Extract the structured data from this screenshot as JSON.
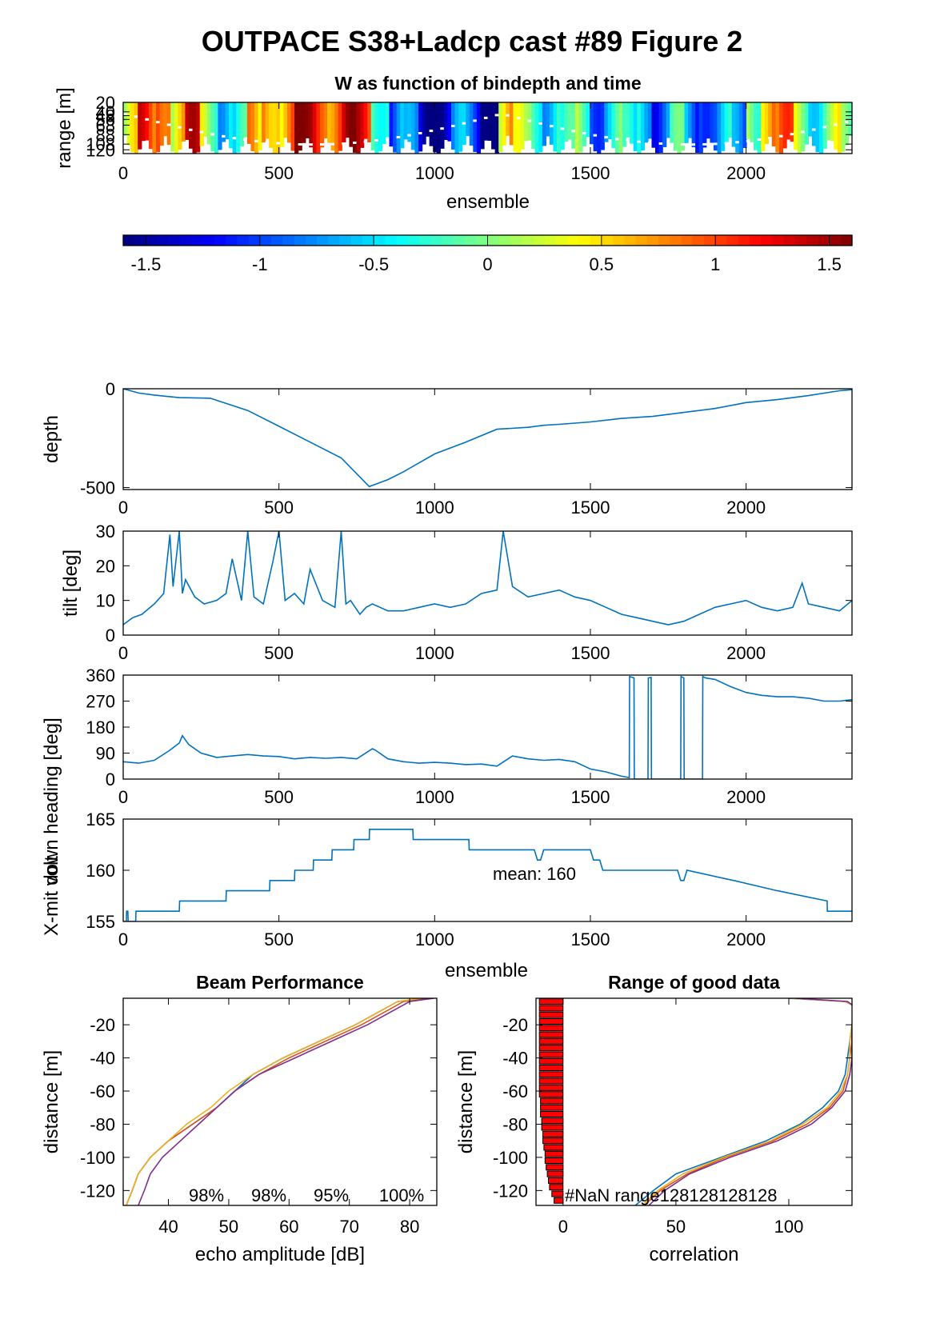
{
  "figure": {
    "title": "OUTPACE S38+Ladcp cast #89 Figure 2"
  },
  "chart_data": [
    {
      "id": "w_image",
      "type": "heatmap",
      "title": "W as function of bindepth and time",
      "xlabel": "ensemble",
      "ylabel": "range [m]",
      "xlim": [
        0,
        2340
      ],
      "ylim": [
        20,
        128
      ],
      "xticks": [
        "0",
        "500",
        "1000",
        "1500",
        "2000"
      ],
      "yticks": [
        "20",
        "40",
        "48",
        "56",
        "68",
        "88",
        "108",
        "120"
      ],
      "note": "sampled column-average W",
      "columns": [
        {
          "x": 0,
          "w": 0.1
        },
        {
          "x": 50,
          "w": 0.9
        },
        {
          "x": 100,
          "w": 1.3
        },
        {
          "x": 150,
          "w": 0.5
        },
        {
          "x": 200,
          "w": 1.0
        },
        {
          "x": 250,
          "w": 0.2
        },
        {
          "x": 300,
          "w": -0.3
        },
        {
          "x": 350,
          "w": -0.6
        },
        {
          "x": 400,
          "w": 0.4
        },
        {
          "x": 450,
          "w": 1.0
        },
        {
          "x": 500,
          "w": 0.7
        },
        {
          "x": 550,
          "w": 1.2
        },
        {
          "x": 600,
          "w": 1.3
        },
        {
          "x": 650,
          "w": 1.1
        },
        {
          "x": 700,
          "w": 1.2
        },
        {
          "x": 750,
          "w": 1.0
        },
        {
          "x": 800,
          "w": 0.1
        },
        {
          "x": 850,
          "w": -0.9
        },
        {
          "x": 900,
          "w": -1.1
        },
        {
          "x": 950,
          "w": -1.4
        },
        {
          "x": 1000,
          "w": -1.2
        },
        {
          "x": 1050,
          "w": -1.0
        },
        {
          "x": 1100,
          "w": -1.1
        },
        {
          "x": 1150,
          "w": -1.3
        },
        {
          "x": 1200,
          "w": 0.4
        },
        {
          "x": 1250,
          "w": -0.1
        },
        {
          "x": 1300,
          "w": 0.0
        },
        {
          "x": 1350,
          "w": -0.3
        },
        {
          "x": 1400,
          "w": -0.6
        },
        {
          "x": 1450,
          "w": -0.2
        },
        {
          "x": 1500,
          "w": -0.6
        },
        {
          "x": 1550,
          "w": -0.4
        },
        {
          "x": 1600,
          "w": -0.7
        },
        {
          "x": 1650,
          "w": -0.3
        },
        {
          "x": 1700,
          "w": -0.8
        },
        {
          "x": 1750,
          "w": -0.5
        },
        {
          "x": 1800,
          "w": -0.9
        },
        {
          "x": 1850,
          "w": -0.6
        },
        {
          "x": 1900,
          "w": -0.7
        },
        {
          "x": 1950,
          "w": -1.1
        },
        {
          "x": 2000,
          "w": 0.2
        },
        {
          "x": 2050,
          "w": 0.9
        },
        {
          "x": 2100,
          "w": 0.6
        },
        {
          "x": 2150,
          "w": 0.1
        },
        {
          "x": 2200,
          "w": -0.1
        },
        {
          "x": 2250,
          "w": 0.0
        },
        {
          "x": 2300,
          "w": -0.4
        }
      ]
    },
    {
      "id": "colorbar",
      "type": "colorbar",
      "range": [
        -1.6,
        1.6
      ],
      "ticks": [
        "-1.5",
        "-1",
        "-0.5",
        "0",
        "0.5",
        "1",
        "1.5"
      ]
    },
    {
      "id": "depth",
      "type": "line",
      "ylabel": "depth",
      "xlim": [
        0,
        2340
      ],
      "ylim": [
        -510,
        0
      ],
      "xticks": [
        "0",
        "500",
        "1000",
        "1500",
        "2000"
      ],
      "yticks": [
        "0",
        "-500"
      ],
      "color": "#0072bd",
      "x": [
        0,
        50,
        100,
        150,
        180,
        280,
        400,
        500,
        600,
        700,
        790,
        850,
        900,
        1000,
        1100,
        1200,
        1300,
        1350,
        1400,
        1500,
        1600,
        1700,
        1800,
        1900,
        2000,
        2100,
        2200,
        2300,
        2340
      ],
      "y": [
        0,
        -22,
        -32,
        -40,
        -45,
        -48,
        -110,
        -190,
        -270,
        -350,
        -495,
        -460,
        -420,
        -330,
        -270,
        -205,
        -195,
        -185,
        -180,
        -168,
        -150,
        -140,
        -120,
        -100,
        -70,
        -55,
        -35,
        -10,
        -5
      ]
    },
    {
      "id": "tilt",
      "type": "line",
      "ylabel": "tilt [deg]",
      "xlim": [
        0,
        2340
      ],
      "ylim": [
        0,
        30
      ],
      "xticks": [
        "0",
        "500",
        "1000",
        "1500",
        "2000"
      ],
      "yticks": [
        "0",
        "10",
        "20",
        "30"
      ],
      "color": "#0072bd",
      "x": [
        0,
        30,
        60,
        100,
        130,
        150,
        160,
        180,
        190,
        200,
        230,
        260,
        300,
        330,
        350,
        380,
        400,
        420,
        450,
        480,
        500,
        520,
        550,
        580,
        600,
        640,
        680,
        700,
        715,
        730,
        760,
        780,
        800,
        850,
        900,
        950,
        1000,
        1050,
        1100,
        1150,
        1200,
        1220,
        1250,
        1300,
        1350,
        1400,
        1450,
        1500,
        1550,
        1600,
        1650,
        1700,
        1750,
        1800,
        1850,
        1900,
        1950,
        2000,
        2050,
        2100,
        2150,
        2180,
        2200,
        2250,
        2300,
        2340
      ],
      "y": [
        3,
        5,
        6,
        9,
        12,
        29,
        14,
        30,
        12,
        16,
        11,
        9,
        10,
        12,
        22,
        10,
        30,
        11,
        9,
        21,
        30,
        10,
        12,
        9,
        19,
        10,
        8,
        30,
        9,
        10,
        6,
        8,
        9,
        7,
        7,
        8,
        9,
        8,
        9,
        12,
        13,
        30,
        14,
        11,
        12,
        13,
        11,
        10,
        8,
        6,
        5,
        4,
        3,
        4,
        6,
        8,
        9,
        10,
        8,
        7,
        8,
        15,
        9,
        8,
        7,
        10
      ]
    },
    {
      "id": "heading",
      "type": "line",
      "ylabel": "down heading [deg]",
      "xlim": [
        0,
        2340
      ],
      "ylim": [
        0,
        360
      ],
      "xticks": [
        "0",
        "500",
        "1000",
        "1500",
        "2000"
      ],
      "yticks": [
        "0",
        "90",
        "180",
        "270",
        "360"
      ],
      "color": "#0072bd",
      "x": [
        0,
        50,
        100,
        150,
        180,
        190,
        210,
        250,
        300,
        350,
        400,
        450,
        500,
        550,
        600,
        650,
        700,
        750,
        800,
        810,
        850,
        900,
        950,
        1000,
        1050,
        1100,
        1150,
        1200,
        1250,
        1300,
        1350,
        1400,
        1450,
        1500,
        1550,
        1600,
        1625,
        1626,
        1640,
        1641,
        1685,
        1686,
        1695,
        1696,
        1790,
        1791,
        1800,
        1801,
        1860,
        1861,
        1870,
        1900,
        1950,
        2000,
        2050,
        2100,
        2150,
        2200,
        2250,
        2300,
        2340
      ],
      "y": [
        60,
        55,
        65,
        100,
        125,
        150,
        120,
        90,
        75,
        80,
        85,
        80,
        78,
        70,
        75,
        72,
        75,
        70,
        105,
        100,
        70,
        60,
        55,
        58,
        55,
        50,
        52,
        45,
        80,
        70,
        65,
        68,
        60,
        35,
        25,
        10,
        5,
        355,
        350,
        0,
        0,
        350,
        352,
        0,
        0,
        355,
        350,
        0,
        0,
        355,
        350,
        345,
        320,
        300,
        290,
        285,
        285,
        280,
        270,
        270,
        275
      ]
    },
    {
      "id": "voltage",
      "type": "line",
      "ylabel": "X-mit volt",
      "xlim": [
        0,
        2340
      ],
      "ylim": [
        155,
        165
      ],
      "xticks": [
        "0",
        "500",
        "1000",
        "1500",
        "2000"
      ],
      "yticks": [
        "155",
        "160",
        "165"
      ],
      "xlabel": "ensemble",
      "annotation": "mean: 160",
      "color": "#0072bd",
      "x": [
        0,
        10,
        11,
        15,
        16,
        40,
        41,
        180,
        181,
        330,
        331,
        470,
        471,
        550,
        551,
        610,
        611,
        670,
        671,
        740,
        741,
        790,
        791,
        930,
        931,
        1110,
        1111,
        1320,
        1330,
        1340,
        1350,
        1500,
        1510,
        1520,
        1530,
        1540,
        1780,
        1790,
        1800,
        1810,
        1960,
        1961,
        2100,
        2101,
        2260,
        2261,
        2340
      ],
      "y": [
        155,
        155,
        156,
        156,
        155,
        155,
        156,
        156,
        157,
        157,
        158,
        158,
        159,
        159,
        160,
        160,
        161,
        161,
        162,
        162,
        163,
        163,
        164,
        164,
        163,
        163,
        162,
        162,
        161,
        161,
        162,
        162,
        161,
        161,
        161,
        160,
        160,
        159,
        159,
        160,
        159,
        159,
        158,
        158,
        157,
        156,
        156
      ]
    },
    {
      "id": "beam",
      "type": "line",
      "title": "Beam Performance",
      "xlabel": "echo amplitude [dB]",
      "ylabel": "distance [m]",
      "xlim": [
        32.5,
        84.5
      ],
      "ylim": [
        -129,
        -4
      ],
      "xticks": [
        "40",
        "50",
        "60",
        "70",
        "80"
      ],
      "yticks": [
        "-20",
        "-40",
        "-60",
        "-80",
        "-100",
        "-120"
      ],
      "annotations": [
        "98%",
        "98%",
        "95%",
        "100%"
      ],
      "series": [
        {
          "color": "#0072bd",
          "y": [
            -4,
            -6,
            -10,
            -20,
            -30,
            -40,
            -50,
            -60,
            -70,
            -80,
            -90,
            -100,
            -110,
            -120,
            -129
          ],
          "x": [
            83,
            78,
            76,
            71,
            65,
            59,
            54,
            51,
            48,
            44,
            40,
            37,
            35,
            34,
            33
          ]
        },
        {
          "color": "#d95319",
          "y": [
            -4,
            -6,
            -10,
            -20,
            -30,
            -40,
            -50,
            -60,
            -70,
            -80,
            -90,
            -100,
            -110,
            -120,
            -129
          ],
          "x": [
            84,
            79,
            77,
            72,
            66,
            60,
            55,
            51,
            48,
            44,
            40,
            37,
            35,
            34,
            33
          ]
        },
        {
          "color": "#edb120",
          "y": [
            -4,
            -6,
            -10,
            -20,
            -30,
            -40,
            -50,
            -60,
            -70,
            -80,
            -90,
            -100,
            -110,
            -120,
            -129
          ],
          "x": [
            82,
            78,
            76,
            71,
            65,
            59,
            54,
            50,
            47,
            43,
            40,
            37,
            35,
            34,
            33
          ]
        },
        {
          "color": "#7e2f8e",
          "y": [
            -4,
            -6,
            -10,
            -20,
            -30,
            -40,
            -50,
            -60,
            -70,
            -80,
            -90,
            -100,
            -110,
            -120,
            -129
          ],
          "x": [
            84,
            80,
            78,
            73,
            67,
            61,
            55,
            51,
            48,
            45,
            42,
            39,
            37,
            36,
            35
          ]
        }
      ]
    },
    {
      "id": "range",
      "type": "line",
      "title": "Range of good data",
      "xlabel": "correlation",
      "ylabel": "distance [m]",
      "xlim": [
        -12,
        128
      ],
      "ylim": [
        -129,
        -4
      ],
      "xticks": [
        "0",
        "50",
        "100"
      ],
      "yticks": [
        "-20",
        "-40",
        "-60",
        "-80",
        "-100",
        "-120"
      ],
      "annotation": "#NaN range128128128128",
      "bar_color": "#ff0000",
      "bars": {
        "y": [
          -6,
          -10,
          -14,
          -18,
          -22,
          -26,
          -30,
          -34,
          -38,
          -42,
          -46,
          -50,
          -54,
          -58,
          -62,
          -66,
          -70,
          -74,
          -78,
          -82,
          -86,
          -90,
          -94,
          -98,
          -102,
          -106,
          -110,
          -114,
          -118,
          -122,
          -126
        ],
        "x": [
          -10.5,
          -10.5,
          -10.5,
          -10.5,
          -10.5,
          -10.5,
          -10.5,
          -10.5,
          -10.5,
          -10.5,
          -10.5,
          -10.5,
          -10.5,
          -10.5,
          -10.5,
          -10,
          -10,
          -10,
          -9.5,
          -9.5,
          -9,
          -9,
          -8.5,
          -8,
          -8,
          -7.5,
          -7,
          -6.5,
          -6,
          -5,
          -4
        ]
      },
      "series": [
        {
          "color": "#0072bd",
          "y": [
            -4,
            -6,
            -8,
            -12,
            -20,
            -30,
            -40,
            -50,
            -60,
            -70,
            -80,
            -90,
            -100,
            -110,
            -120,
            -129
          ],
          "x": [
            100,
            125,
            128,
            129,
            128,
            127,
            126,
            125,
            122,
            115,
            105,
            90,
            70,
            50,
            40,
            32
          ]
        },
        {
          "color": "#d95319",
          "y": [
            -4,
            -6,
            -8,
            -12,
            -20,
            -30,
            -40,
            -50,
            -60,
            -70,
            -80,
            -90,
            -100,
            -110,
            -120,
            -129
          ],
          "x": [
            102,
            126,
            128,
            129,
            128,
            128,
            127,
            126,
            124,
            118,
            108,
            93,
            72,
            55,
            43,
            36
          ]
        },
        {
          "color": "#edb120",
          "y": [
            -4,
            -6,
            -8,
            -12,
            -20,
            -30,
            -40,
            -50,
            -60,
            -70,
            -80,
            -90,
            -100,
            -110,
            -120,
            -129
          ],
          "x": [
            101,
            125,
            128,
            129,
            128,
            127,
            127,
            126,
            123,
            117,
            106,
            92,
            71,
            53,
            42,
            35
          ]
        },
        {
          "color": "#7e2f8e",
          "y": [
            -4,
            -6,
            -8,
            -12,
            -20,
            -30,
            -40,
            -50,
            -60,
            -70,
            -80,
            -90,
            -100,
            -110,
            -120,
            -129
          ],
          "x": [
            103,
            126,
            128,
            129,
            128,
            128,
            128,
            127,
            125,
            119,
            110,
            95,
            74,
            56,
            45,
            38
          ]
        }
      ]
    }
  ]
}
